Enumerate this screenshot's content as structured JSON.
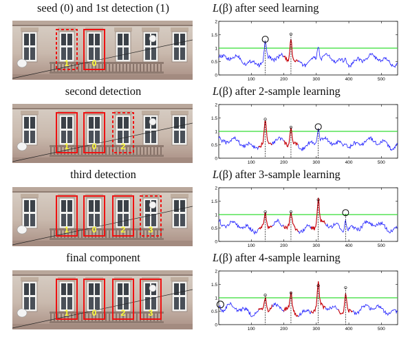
{
  "rows": [
    {
      "left_caption": "seed (0) and  1st detection (1)",
      "right_caption_func": "L",
      "right_caption_beta": "(β)",
      "right_caption_rest": " after seed learning",
      "windows": [
        {
          "label": "1",
          "style": "dashed"
        },
        {
          "label": "0",
          "style": "solid"
        }
      ],
      "circle_index": 0,
      "highlighted_peaks": [
        1
      ]
    },
    {
      "left_caption": "second detection",
      "right_caption_func": "L",
      "right_caption_beta": "(β)",
      "right_caption_rest": " after 2-sample learning",
      "windows": [
        {
          "label": "1",
          "style": "solid"
        },
        {
          "label": "0",
          "style": "solid"
        },
        {
          "label": "2",
          "style": "dashed"
        }
      ],
      "circle_index": 2,
      "highlighted_peaks": [
        0,
        1
      ]
    },
    {
      "left_caption": "third detection",
      "right_caption_func": "L",
      "right_caption_beta": "(β)",
      "right_caption_rest": " after 3-sample learning",
      "windows": [
        {
          "label": "1",
          "style": "solid"
        },
        {
          "label": "0",
          "style": "solid"
        },
        {
          "label": "2",
          "style": "solid"
        },
        {
          "label": "3",
          "style": "dashed"
        }
      ],
      "circle_index": 3,
      "highlighted_peaks": [
        0,
        1,
        2
      ]
    },
    {
      "left_caption": "final component",
      "right_caption_func": "L",
      "right_caption_beta": "(β)",
      "right_caption_rest": " after 4-sample learning",
      "windows": [
        {
          "label": "1",
          "style": "solid"
        },
        {
          "label": "0",
          "style": "solid"
        },
        {
          "label": "2",
          "style": "solid"
        },
        {
          "label": "3",
          "style": "solid"
        }
      ],
      "circle_index": -1,
      "highlighted_peaks": [
        0,
        1,
        2,
        3
      ]
    }
  ],
  "colors": {
    "curve": "#1a1aff",
    "highlight": "#cc0000",
    "threshold": "#33dd33",
    "box": "#ee1111",
    "label": "#ffff33"
  },
  "chart_data": {
    "type": "line",
    "xlim": [
      0,
      550
    ],
    "ylim": [
      0,
      2
    ],
    "xticks": [
      100,
      200,
      300,
      400,
      500
    ],
    "yticks": [
      0,
      0.5,
      1,
      1.5,
      2
    ],
    "ytick_labels": [
      "0",
      "0.5",
      "1",
      "1.5",
      "2"
    ],
    "threshold": 1,
    "peaks": [
      {
        "x": 143,
        "ys": [
          1.28,
          1.45,
          1.1,
          1.1
        ]
      },
      {
        "x": 222,
        "ys": [
          1.52,
          1.15,
          1.1,
          1.18
        ]
      },
      {
        "x": 306,
        "ys": [
          1.12,
          1.12,
          1.55,
          1.45
        ]
      },
      {
        "x": 390,
        "ys": [
          0.78,
          0.8,
          1.02,
          1.38
        ]
      }
    ],
    "edge_circle": {
      "x": 5,
      "y": 0.75
    }
  }
}
